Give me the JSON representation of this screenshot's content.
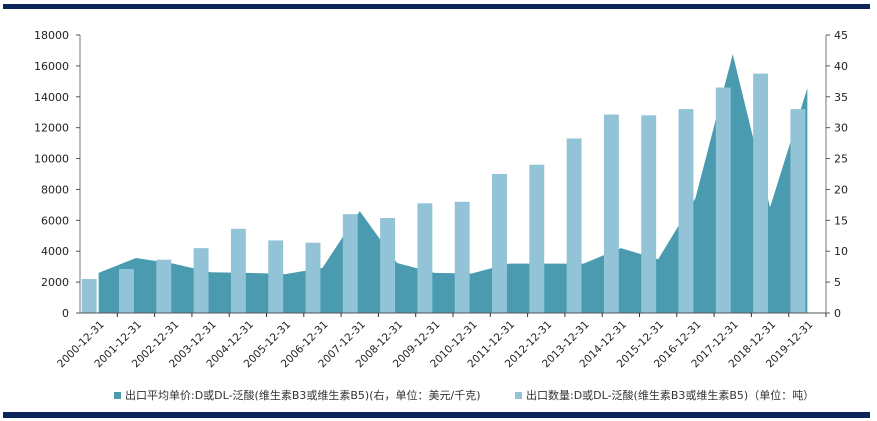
{
  "chart_data": {
    "type": "bar+area",
    "title": "",
    "categories": [
      "2000-12-31",
      "2001-12-31",
      "2002-12-31",
      "2003-12-31",
      "2004-12-31",
      "2005-12-31",
      "2006-12-31",
      "2007-12-31",
      "2008-12-31",
      "2009-12-31",
      "2010-12-31",
      "2011-12-31",
      "2012-12-31",
      "2013-12-31",
      "2014-12-31",
      "2015-12-31",
      "2016-12-31",
      "2017-12-31",
      "2018-12-31",
      "2019-12-31"
    ],
    "series": [
      {
        "name": "出口平均单价:D或DL-泛酸(维生素B3或维生素B5)(右，单位：美元/千克)",
        "type": "area",
        "axis": "right",
        "color": "#4a9bb0",
        "values": [
          6.5,
          8.9,
          8.0,
          6.6,
          6.5,
          6.3,
          7.3,
          16.5,
          8.1,
          6.5,
          6.4,
          8.0,
          8.0,
          8.0,
          10.5,
          8.7,
          18.6,
          41.9,
          17.1,
          36.4
        ]
      },
      {
        "name": "出口数量:D或DL-泛酸(维生素B3或维生素B5)（单位：吨）",
        "type": "bar",
        "axis": "left",
        "color": "#93c3d6",
        "values": [
          2200,
          2850,
          3450,
          4200,
          5450,
          4700,
          4550,
          6400,
          6150,
          7100,
          7200,
          9000,
          9600,
          11300,
          12850,
          12800,
          13200,
          14600,
          15500,
          13200
        ]
      }
    ],
    "left_axis": {
      "min": 0,
      "max": 18000,
      "step": 2000,
      "ticks": [
        "0",
        "2000",
        "4000",
        "6000",
        "8000",
        "10000",
        "12000",
        "14000",
        "16000",
        "18000"
      ]
    },
    "right_axis": {
      "min": 0,
      "max": 45,
      "step": 5,
      "ticks": [
        "0",
        "5",
        "10",
        "15",
        "20",
        "25",
        "30",
        "35",
        "40",
        "45"
      ]
    },
    "xlabel": "",
    "ylabel": "",
    "grid": false,
    "legend_position": "bottom"
  },
  "legend": {
    "item1": "出口平均单价:D或DL-泛酸(维生素B3或维生素B5)(右，单位：美元/千克)",
    "item2": "出口数量:D或DL-泛酸(维生素B3或维生素B5)（单位：吨）",
    "color1": "#4a9bb0",
    "color2": "#93c3d6"
  }
}
